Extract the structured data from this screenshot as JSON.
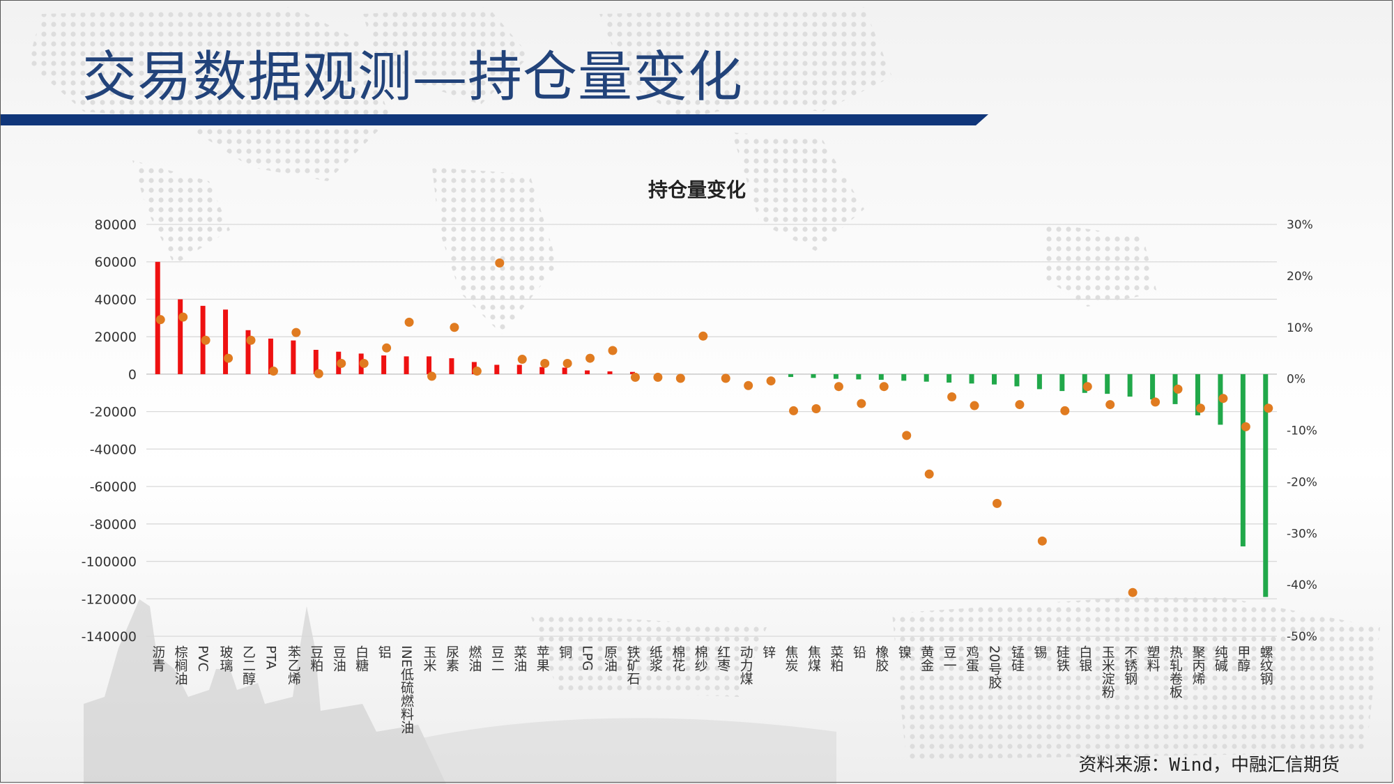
{
  "slide": {
    "title": "交易数据观测—持仓量变化",
    "source": "资料来源：Wind，中融汇信期货",
    "colors": {
      "title": "#22437a",
      "band": "#10367a"
    }
  },
  "chart_data": {
    "type": "bar",
    "title": "持仓量变化",
    "xlabel": "",
    "ylabel": "",
    "ylim": [
      -140000,
      80000
    ],
    "y2lim": [
      -0.5,
      0.3
    ],
    "y_ticks": [
      "80000",
      "60000",
      "40000",
      "20000",
      "0",
      "-20000",
      "-40000",
      "-60000",
      "-80000",
      "-100000",
      "-120000",
      "-140000"
    ],
    "y2_ticks": [
      "30%",
      "20%",
      "10%",
      "0%",
      "-10%",
      "-20%",
      "-30%",
      "-40%",
      "-50%"
    ],
    "grid": true,
    "legend": "none",
    "colors": {
      "positive": "#ee1111",
      "negative": "#21a84a",
      "dot": "#e07b20"
    },
    "categories": [
      "沥青",
      "棕榈油",
      "PVC",
      "玻璃",
      "乙二醇",
      "PTA",
      "苯乙烯",
      "豆粕",
      "豆油",
      "白糖",
      "铝",
      "INE低硫燃料油",
      "玉米",
      "尿素",
      "燃油",
      "豆二",
      "菜油",
      "苹果",
      "铜",
      "LPG",
      "原油",
      "铁矿石",
      "纸浆",
      "棉花",
      "棉纱",
      "红枣",
      "动力煤",
      "锌",
      "焦炭",
      "焦煤",
      "菜粕",
      "铅",
      "橡胶",
      "镍",
      "黄金",
      "豆一",
      "鸡蛋",
      "20号胶",
      "锰硅",
      "锡",
      "硅铁",
      "白银",
      "玉米淀粉",
      "不锈钢",
      "塑料",
      "热轧卷板",
      "聚丙烯",
      "纯碱",
      "甲醇",
      "螺纹钢"
    ],
    "series": [
      {
        "type": "bar",
        "axis": "left",
        "values": [
          60000,
          40000,
          36500,
          34500,
          23500,
          19000,
          18000,
          13000,
          12000,
          11000,
          10000,
          9500,
          9500,
          8500,
          6500,
          5000,
          5000,
          3800,
          3500,
          2000,
          1500,
          1200,
          0,
          0,
          0,
          0,
          0,
          0,
          -1500,
          -2000,
          -2500,
          -2800,
          -3000,
          -3500,
          -4000,
          -4500,
          -5000,
          -5500,
          -6500,
          -8000,
          -9000,
          -10000,
          -10500,
          -12000,
          -13500,
          -16000,
          -22000,
          -27000,
          -92000,
          -119000
        ]
      },
      {
        "type": "scatter",
        "axis": "right",
        "values": [
          0.115,
          0.12,
          0.075,
          0.04,
          0.075,
          0.015,
          0.09,
          0.01,
          0.03,
          0.03,
          0.06,
          0.11,
          0.005,
          0.1,
          0.015,
          0.225,
          0.038,
          0.03,
          0.03,
          0.04,
          0.055,
          0.003,
          0.003,
          0.001,
          0.083,
          0.001,
          -0.013,
          -0.004,
          -0.062,
          -0.058,
          -0.015,
          -0.048,
          -0.015,
          -0.11,
          -0.185,
          -0.035,
          -0.052,
          -0.242,
          -0.05,
          -0.315,
          -0.062,
          -0.015,
          -0.05,
          -0.415,
          -0.045,
          -0.02,
          -0.057,
          -0.038,
          -0.093,
          -0.057
        ]
      }
    ]
  }
}
